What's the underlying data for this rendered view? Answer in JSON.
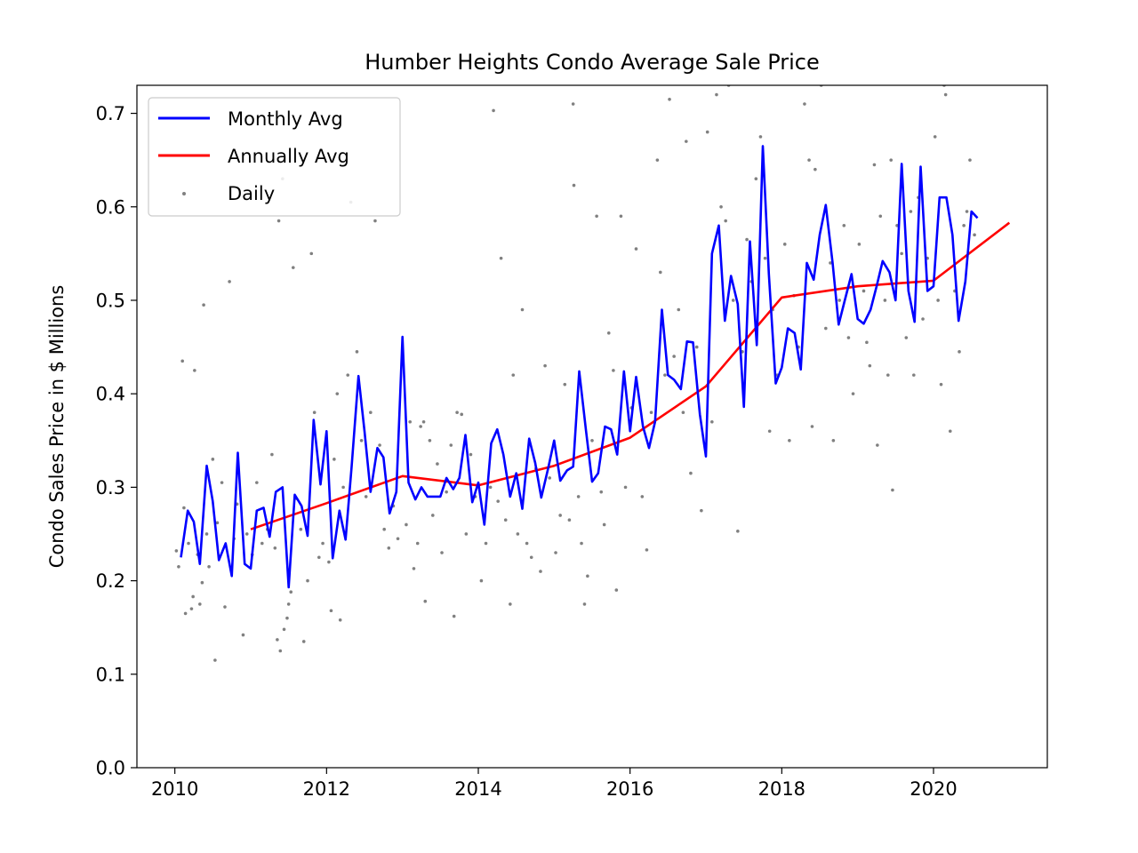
{
  "chart_data": {
    "type": "line",
    "title": "Humber Heights Condo Average Sale Price",
    "xlabel": "",
    "ylabel": "Condo Sales Price in $ Millions",
    "xlim": [
      2009.5,
      2021.5
    ],
    "ylim": [
      0.0,
      0.73
    ],
    "x_ticks": [
      2010,
      2012,
      2014,
      2016,
      2018,
      2020
    ],
    "y_ticks": [
      0.0,
      0.1,
      0.2,
      0.3,
      0.4,
      0.5,
      0.6,
      0.7
    ],
    "y_tick_labels": [
      "0.0",
      "0.1",
      "0.2",
      "0.3",
      "0.4",
      "0.5",
      "0.6",
      "0.7"
    ],
    "grid": false,
    "legend": {
      "placement": "top-left",
      "entries": [
        {
          "label": "Monthly Avg",
          "marker": "line",
          "color": "#0000ff"
        },
        {
          "label": "Annually Avg",
          "marker": "line",
          "color": "#ff0000"
        },
        {
          "label": "Daily",
          "marker": "dot",
          "color": "#808080"
        }
      ]
    },
    "series": [
      {
        "name": "Monthly Avg",
        "color": "#0000ff",
        "x": [
          2010.08,
          2010.17,
          2010.25,
          2010.33,
          2010.42,
          2010.5,
          2010.58,
          2010.67,
          2010.75,
          2010.83,
          2010.92,
          2011.0,
          2011.08,
          2011.17,
          2011.25,
          2011.33,
          2011.42,
          2011.5,
          2011.58,
          2011.67,
          2011.75,
          2011.83,
          2011.92,
          2012.0,
          2012.08,
          2012.17,
          2012.25,
          2012.33,
          2012.42,
          2012.5,
          2012.58,
          2012.67,
          2012.75,
          2012.83,
          2012.92,
          2013.0,
          2013.08,
          2013.17,
          2013.25,
          2013.33,
          2013.42,
          2013.5,
          2013.58,
          2013.67,
          2013.75,
          2013.83,
          2013.92,
          2014.0,
          2014.08,
          2014.17,
          2014.25,
          2014.33,
          2014.42,
          2014.5,
          2014.58,
          2014.67,
          2014.75,
          2014.83,
          2014.92,
          2015.0,
          2015.08,
          2015.17,
          2015.25,
          2015.33,
          2015.42,
          2015.5,
          2015.58,
          2015.67,
          2015.75,
          2015.83,
          2015.92,
          2016.0,
          2016.08,
          2016.17,
          2016.25,
          2016.33,
          2016.42,
          2016.5,
          2016.58,
          2016.67,
          2016.75,
          2016.83,
          2016.92,
          2017.0,
          2017.08,
          2017.17,
          2017.25,
          2017.33,
          2017.42,
          2017.5,
          2017.58,
          2017.67,
          2017.75,
          2017.83,
          2017.92,
          2018.0,
          2018.08,
          2018.17,
          2018.25,
          2018.33,
          2018.42,
          2018.5,
          2018.58,
          2018.67,
          2018.75,
          2018.83,
          2018.92,
          2019.0,
          2019.08,
          2019.17,
          2019.25,
          2019.33,
          2019.42,
          2019.5,
          2019.58,
          2019.67,
          2019.75,
          2019.83,
          2019.92,
          2020.0,
          2020.08,
          2020.17,
          2020.25,
          2020.33,
          2020.42,
          2020.5,
          2020.58
        ],
        "values": [
          0.225,
          0.275,
          0.263,
          0.218,
          0.323,
          0.285,
          0.222,
          0.24,
          0.205,
          0.337,
          0.218,
          0.213,
          0.275,
          0.278,
          0.247,
          0.295,
          0.3,
          0.193,
          0.292,
          0.28,
          0.248,
          0.372,
          0.303,
          0.36,
          0.224,
          0.275,
          0.244,
          0.322,
          0.419,
          0.36,
          0.295,
          0.342,
          0.332,
          0.272,
          0.295,
          0.461,
          0.305,
          0.287,
          0.3,
          0.29,
          0.29,
          0.29,
          0.31,
          0.298,
          0.31,
          0.356,
          0.284,
          0.305,
          0.26,
          0.347,
          0.362,
          0.335,
          0.29,
          0.315,
          0.277,
          0.352,
          0.326,
          0.289,
          0.32,
          0.35,
          0.307,
          0.318,
          0.322,
          0.424,
          0.36,
          0.306,
          0.315,
          0.365,
          0.362,
          0.335,
          0.424,
          0.36,
          0.418,
          0.365,
          0.342,
          0.37,
          0.49,
          0.42,
          0.415,
          0.405,
          0.456,
          0.455,
          0.378,
          0.333,
          0.55,
          0.58,
          0.478,
          0.526,
          0.496,
          0.386,
          0.563,
          0.452,
          0.665,
          0.528,
          0.411,
          0.428,
          0.47,
          0.465,
          0.426,
          0.54,
          0.522,
          0.57,
          0.602,
          0.54,
          0.474,
          0.5,
          0.528,
          0.48,
          0.475,
          0.49,
          0.515,
          0.542,
          0.53,
          0.5,
          0.646,
          0.51,
          0.477,
          0.643,
          0.51,
          0.515,
          0.61,
          0.61,
          0.57,
          0.478,
          0.52,
          0.595,
          0.588
        ]
      },
      {
        "name": "Annually Avg",
        "color": "#ff0000",
        "x": [
          2011,
          2012,
          2013,
          2014,
          2015,
          2016,
          2017,
          2018,
          2019,
          2020,
          2021
        ],
        "values": [
          0.255,
          0.283,
          0.312,
          0.302,
          0.323,
          0.353,
          0.408,
          0.503,
          0.515,
          0.521,
          0.583
        ]
      },
      {
        "name": "Daily",
        "type": "scatter",
        "color": "#808080",
        "points": [
          [
            2010.02,
            0.232
          ],
          [
            2010.05,
            0.215
          ],
          [
            2010.1,
            0.435
          ],
          [
            2010.12,
            0.278
          ],
          [
            2010.14,
            0.165
          ],
          [
            2010.18,
            0.24
          ],
          [
            2010.22,
            0.17
          ],
          [
            2010.24,
            0.183
          ],
          [
            2010.26,
            0.425
          ],
          [
            2010.3,
            0.228
          ],
          [
            2010.33,
            0.175
          ],
          [
            2010.36,
            0.198
          ],
          [
            2010.38,
            0.495
          ],
          [
            2010.42,
            0.25
          ],
          [
            2010.45,
            0.215
          ],
          [
            2010.5,
            0.33
          ],
          [
            2010.53,
            0.115
          ],
          [
            2010.56,
            0.262
          ],
          [
            2010.62,
            0.305
          ],
          [
            2010.66,
            0.172
          ],
          [
            2010.72,
            0.52
          ],
          [
            2010.78,
            0.245
          ],
          [
            2010.82,
            0.282
          ],
          [
            2010.9,
            0.142
          ],
          [
            2010.95,
            0.25
          ],
          [
            2011.02,
            0.228
          ],
          [
            2011.08,
            0.305
          ],
          [
            2011.15,
            0.24
          ],
          [
            2011.22,
            0.255
          ],
          [
            2011.28,
            0.335
          ],
          [
            2011.32,
            0.235
          ],
          [
            2011.35,
            0.137
          ],
          [
            2011.37,
            0.585
          ],
          [
            2011.39,
            0.125
          ],
          [
            2011.42,
            0.63
          ],
          [
            2011.44,
            0.148
          ],
          [
            2011.48,
            0.16
          ],
          [
            2011.5,
            0.175
          ],
          [
            2011.53,
            0.188
          ],
          [
            2011.56,
            0.535
          ],
          [
            2011.6,
            0.288
          ],
          [
            2011.66,
            0.255
          ],
          [
            2011.7,
            0.135
          ],
          [
            2011.75,
            0.2
          ],
          [
            2011.8,
            0.55
          ],
          [
            2011.84,
            0.38
          ],
          [
            2011.9,
            0.225
          ],
          [
            2011.95,
            0.24
          ],
          [
            2012.03,
            0.22
          ],
          [
            2012.06,
            0.168
          ],
          [
            2012.1,
            0.33
          ],
          [
            2012.14,
            0.4
          ],
          [
            2012.18,
            0.158
          ],
          [
            2012.22,
            0.3
          ],
          [
            2012.28,
            0.42
          ],
          [
            2012.32,
            0.605
          ],
          [
            2012.4,
            0.445
          ],
          [
            2012.46,
            0.35
          ],
          [
            2012.52,
            0.29
          ],
          [
            2012.58,
            0.38
          ],
          [
            2012.64,
            0.585
          ],
          [
            2012.7,
            0.345
          ],
          [
            2012.76,
            0.255
          ],
          [
            2012.82,
            0.235
          ],
          [
            2012.88,
            0.28
          ],
          [
            2012.94,
            0.245
          ],
          [
            2013.05,
            0.26
          ],
          [
            2013.1,
            0.37
          ],
          [
            2013.15,
            0.213
          ],
          [
            2013.2,
            0.24
          ],
          [
            2013.24,
            0.365
          ],
          [
            2013.28,
            0.37
          ],
          [
            2013.3,
            0.178
          ],
          [
            2013.36,
            0.35
          ],
          [
            2013.4,
            0.27
          ],
          [
            2013.46,
            0.325
          ],
          [
            2013.52,
            0.23
          ],
          [
            2013.58,
            0.295
          ],
          [
            2013.64,
            0.345
          ],
          [
            2013.68,
            0.162
          ],
          [
            2013.72,
            0.38
          ],
          [
            2013.78,
            0.378
          ],
          [
            2013.84,
            0.25
          ],
          [
            2013.9,
            0.335
          ],
          [
            2013.96,
            0.29
          ],
          [
            2014.04,
            0.2
          ],
          [
            2014.1,
            0.24
          ],
          [
            2014.16,
            0.3
          ],
          [
            2014.2,
            0.703
          ],
          [
            2014.26,
            0.285
          ],
          [
            2014.3,
            0.545
          ],
          [
            2014.36,
            0.265
          ],
          [
            2014.42,
            0.175
          ],
          [
            2014.46,
            0.42
          ],
          [
            2014.52,
            0.25
          ],
          [
            2014.58,
            0.49
          ],
          [
            2014.64,
            0.24
          ],
          [
            2014.7,
            0.225
          ],
          [
            2014.76,
            0.32
          ],
          [
            2014.82,
            0.21
          ],
          [
            2014.88,
            0.43
          ],
          [
            2014.94,
            0.31
          ],
          [
            2015.02,
            0.23
          ],
          [
            2015.08,
            0.27
          ],
          [
            2015.14,
            0.41
          ],
          [
            2015.2,
            0.265
          ],
          [
            2015.25,
            0.71
          ],
          [
            2015.26,
            0.623
          ],
          [
            2015.32,
            0.29
          ],
          [
            2015.36,
            0.24
          ],
          [
            2015.4,
            0.175
          ],
          [
            2015.44,
            0.205
          ],
          [
            2015.5,
            0.35
          ],
          [
            2015.56,
            0.59
          ],
          [
            2015.62,
            0.295
          ],
          [
            2015.66,
            0.26
          ],
          [
            2015.72,
            0.465
          ],
          [
            2015.78,
            0.425
          ],
          [
            2015.82,
            0.19
          ],
          [
            2015.88,
            0.59
          ],
          [
            2015.94,
            0.3
          ],
          [
            2016.02,
            0.385
          ],
          [
            2016.08,
            0.555
          ],
          [
            2016.16,
            0.29
          ],
          [
            2016.22,
            0.233
          ],
          [
            2016.28,
            0.38
          ],
          [
            2016.36,
            0.65
          ],
          [
            2016.4,
            0.53
          ],
          [
            2016.46,
            0.42
          ],
          [
            2016.52,
            0.715
          ],
          [
            2016.58,
            0.44
          ],
          [
            2016.64,
            0.49
          ],
          [
            2016.7,
            0.38
          ],
          [
            2016.74,
            0.67
          ],
          [
            2016.8,
            0.315
          ],
          [
            2016.88,
            0.45
          ],
          [
            2016.94,
            0.275
          ],
          [
            2017.02,
            0.68
          ],
          [
            2017.08,
            0.37
          ],
          [
            2017.14,
            0.72
          ],
          [
            2017.2,
            0.6
          ],
          [
            2017.26,
            0.585
          ],
          [
            2017.3,
            0.73
          ],
          [
            2017.36,
            0.5
          ],
          [
            2017.42,
            0.253
          ],
          [
            2017.48,
            0.445
          ],
          [
            2017.54,
            0.565
          ],
          [
            2017.6,
            0.52
          ],
          [
            2017.66,
            0.63
          ],
          [
            2017.72,
            0.675
          ],
          [
            2017.78,
            0.545
          ],
          [
            2017.84,
            0.36
          ],
          [
            2017.88,
            0.49
          ],
          [
            2017.94,
            0.42
          ],
          [
            2018.04,
            0.56
          ],
          [
            2018.1,
            0.35
          ],
          [
            2018.16,
            0.505
          ],
          [
            2018.22,
            0.45
          ],
          [
            2018.3,
            0.71
          ],
          [
            2018.36,
            0.65
          ],
          [
            2018.4,
            0.365
          ],
          [
            2018.44,
            0.64
          ],
          [
            2018.52,
            0.73
          ],
          [
            2018.58,
            0.47
          ],
          [
            2018.64,
            0.54
          ],
          [
            2018.68,
            0.35
          ],
          [
            2018.76,
            0.5
          ],
          [
            2018.82,
            0.58
          ],
          [
            2018.88,
            0.46
          ],
          [
            2018.94,
            0.4
          ],
          [
            2019.02,
            0.56
          ],
          [
            2019.08,
            0.51
          ],
          [
            2019.12,
            0.455
          ],
          [
            2019.16,
            0.43
          ],
          [
            2019.22,
            0.645
          ],
          [
            2019.26,
            0.345
          ],
          [
            2019.3,
            0.59
          ],
          [
            2019.36,
            0.5
          ],
          [
            2019.4,
            0.42
          ],
          [
            2019.44,
            0.65
          ],
          [
            2019.46,
            0.297
          ],
          [
            2019.52,
            0.58
          ],
          [
            2019.58,
            0.55
          ],
          [
            2019.64,
            0.46
          ],
          [
            2019.7,
            0.595
          ],
          [
            2019.74,
            0.42
          ],
          [
            2019.8,
            0.61
          ],
          [
            2019.86,
            0.48
          ],
          [
            2019.92,
            0.545
          ],
          [
            2020.02,
            0.675
          ],
          [
            2020.06,
            0.5
          ],
          [
            2020.1,
            0.41
          ],
          [
            2020.14,
            0.73
          ],
          [
            2020.16,
            0.72
          ],
          [
            2020.22,
            0.36
          ],
          [
            2020.28,
            0.51
          ],
          [
            2020.34,
            0.445
          ],
          [
            2020.4,
            0.58
          ],
          [
            2020.44,
            0.595
          ],
          [
            2020.48,
            0.65
          ],
          [
            2020.54,
            0.57
          ]
        ]
      }
    ]
  }
}
